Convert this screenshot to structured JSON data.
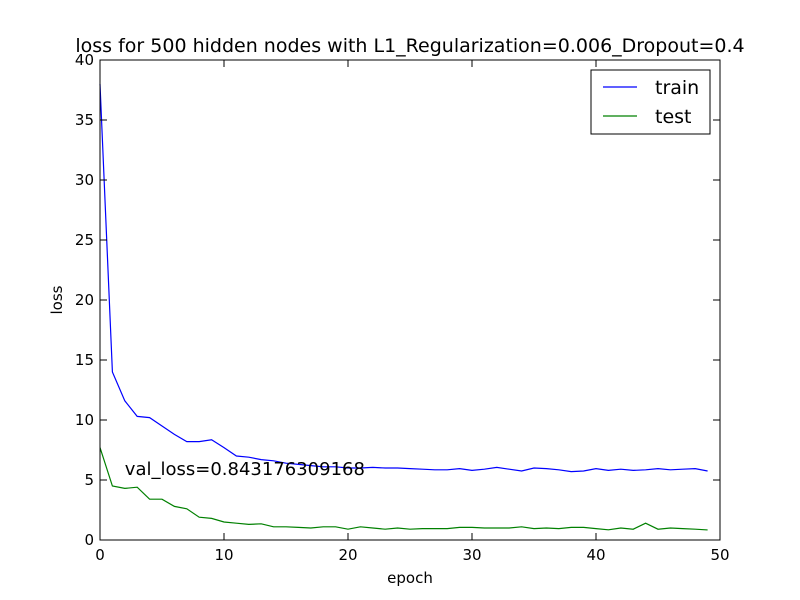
{
  "chart_data": {
    "type": "line",
    "title": "loss for 500 hidden nodes with L1_Regularization=0.006_Dropout=0.4",
    "xlabel": "epoch",
    "ylabel": "loss",
    "xlim": [
      0,
      50
    ],
    "ylim": [
      0,
      40
    ],
    "xticks": [
      0,
      10,
      20,
      30,
      40,
      50
    ],
    "yticks": [
      0,
      5,
      10,
      15,
      20,
      25,
      30,
      35,
      40
    ],
    "grid": false,
    "legend": "top-right",
    "annotation": {
      "text": "val_loss=0.843176309168",
      "x": 2,
      "y": 5.4
    },
    "x": [
      0,
      1,
      2,
      3,
      4,
      5,
      6,
      7,
      8,
      9,
      10,
      11,
      12,
      13,
      14,
      15,
      16,
      17,
      18,
      19,
      20,
      21,
      22,
      23,
      24,
      25,
      26,
      27,
      28,
      29,
      30,
      31,
      32,
      33,
      34,
      35,
      36,
      37,
      38,
      39,
      40,
      41,
      42,
      43,
      44,
      45,
      46,
      47,
      48,
      49
    ],
    "series": [
      {
        "name": "train",
        "color": "#0000ff",
        "values": [
          38.0,
          14.0,
          11.6,
          10.3,
          10.2,
          9.5,
          8.8,
          8.2,
          8.2,
          8.35,
          7.7,
          7.0,
          6.9,
          6.7,
          6.6,
          6.4,
          6.3,
          6.2,
          6.1,
          6.1,
          6.0,
          6.0,
          6.05,
          6.0,
          6.0,
          5.95,
          5.9,
          5.85,
          5.85,
          5.95,
          5.8,
          5.9,
          6.05,
          5.9,
          5.75,
          6.0,
          5.95,
          5.85,
          5.7,
          5.75,
          5.95,
          5.8,
          5.9,
          5.8,
          5.85,
          5.95,
          5.85,
          5.9,
          5.95,
          5.75
        ]
      },
      {
        "name": "test",
        "color": "#008000",
        "values": [
          7.7,
          4.5,
          4.3,
          4.4,
          3.4,
          3.4,
          2.8,
          2.6,
          1.9,
          1.8,
          1.5,
          1.4,
          1.3,
          1.35,
          1.1,
          1.1,
          1.05,
          1.0,
          1.1,
          1.1,
          0.9,
          1.1,
          1.0,
          0.9,
          1.0,
          0.9,
          0.95,
          0.95,
          0.95,
          1.05,
          1.05,
          1.0,
          1.0,
          1.0,
          1.1,
          0.95,
          1.0,
          0.95,
          1.05,
          1.05,
          0.95,
          0.85,
          1.0,
          0.9,
          1.4,
          0.9,
          1.0,
          0.95,
          0.9,
          0.84
        ]
      }
    ]
  }
}
